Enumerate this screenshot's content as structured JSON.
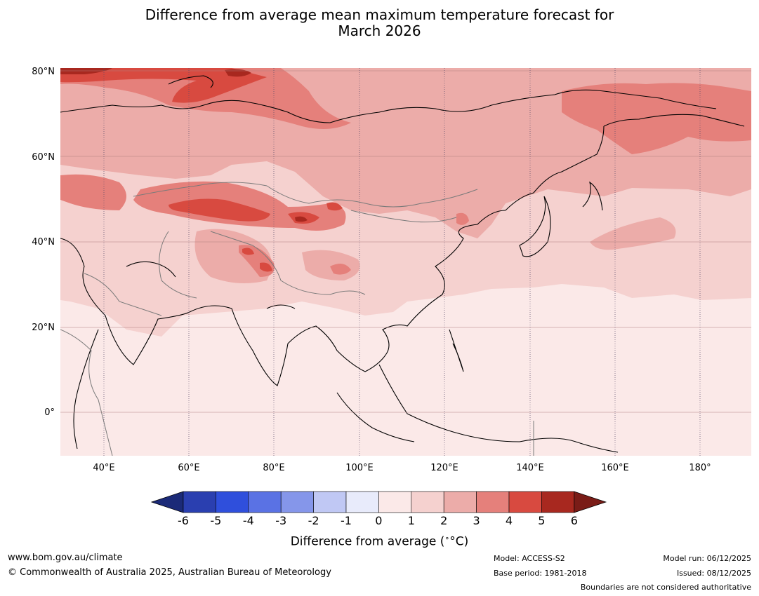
{
  "title": {
    "line1": "Difference from average mean maximum temperature forecast for",
    "line2": "March 2026"
  },
  "map": {
    "latitude_labels": [
      "80°N",
      "60°N",
      "40°N",
      "20°N",
      "0°"
    ],
    "longitude_labels": [
      "40°E",
      "60°E",
      "80°E",
      "100°E",
      "120°E",
      "140°E",
      "160°E",
      "180°"
    ],
    "region_extent": {
      "lon_min": 30,
      "lon_max": 192,
      "lat_min": -10,
      "lat_max": 81
    }
  },
  "colorbar": {
    "ticks": [
      "-6",
      "-5",
      "-4",
      "-3",
      "-2",
      "-1",
      "0",
      "1",
      "2",
      "3",
      "4",
      "5",
      "6"
    ],
    "colors": [
      "#1b2a78",
      "#2a3fb0",
      "#2f4fdc",
      "#5a72e4",
      "#8596ea",
      "#c0c8f4",
      "#e8ebfb",
      "#fbe9e8",
      "#f5d1cf",
      "#ecaca9",
      "#e5807b",
      "#d84a40",
      "#a8281f",
      "#7a1c17"
    ],
    "label": "Difference from average (",
    "label_unit": "°C)"
  },
  "footer": {
    "website": "www.bom.gov.au/climate",
    "copyright": "© Commonwealth of Australia 2025, Australian Bureau of Meteorology",
    "model": "Model: ACCESS-S2",
    "base_period": "Base period: 1981-2018",
    "model_run": "Model run: 06/12/2025",
    "issued": "Issued: 08/12/2025",
    "disclaimer": "Boundaries are not considered authoritative"
  }
}
